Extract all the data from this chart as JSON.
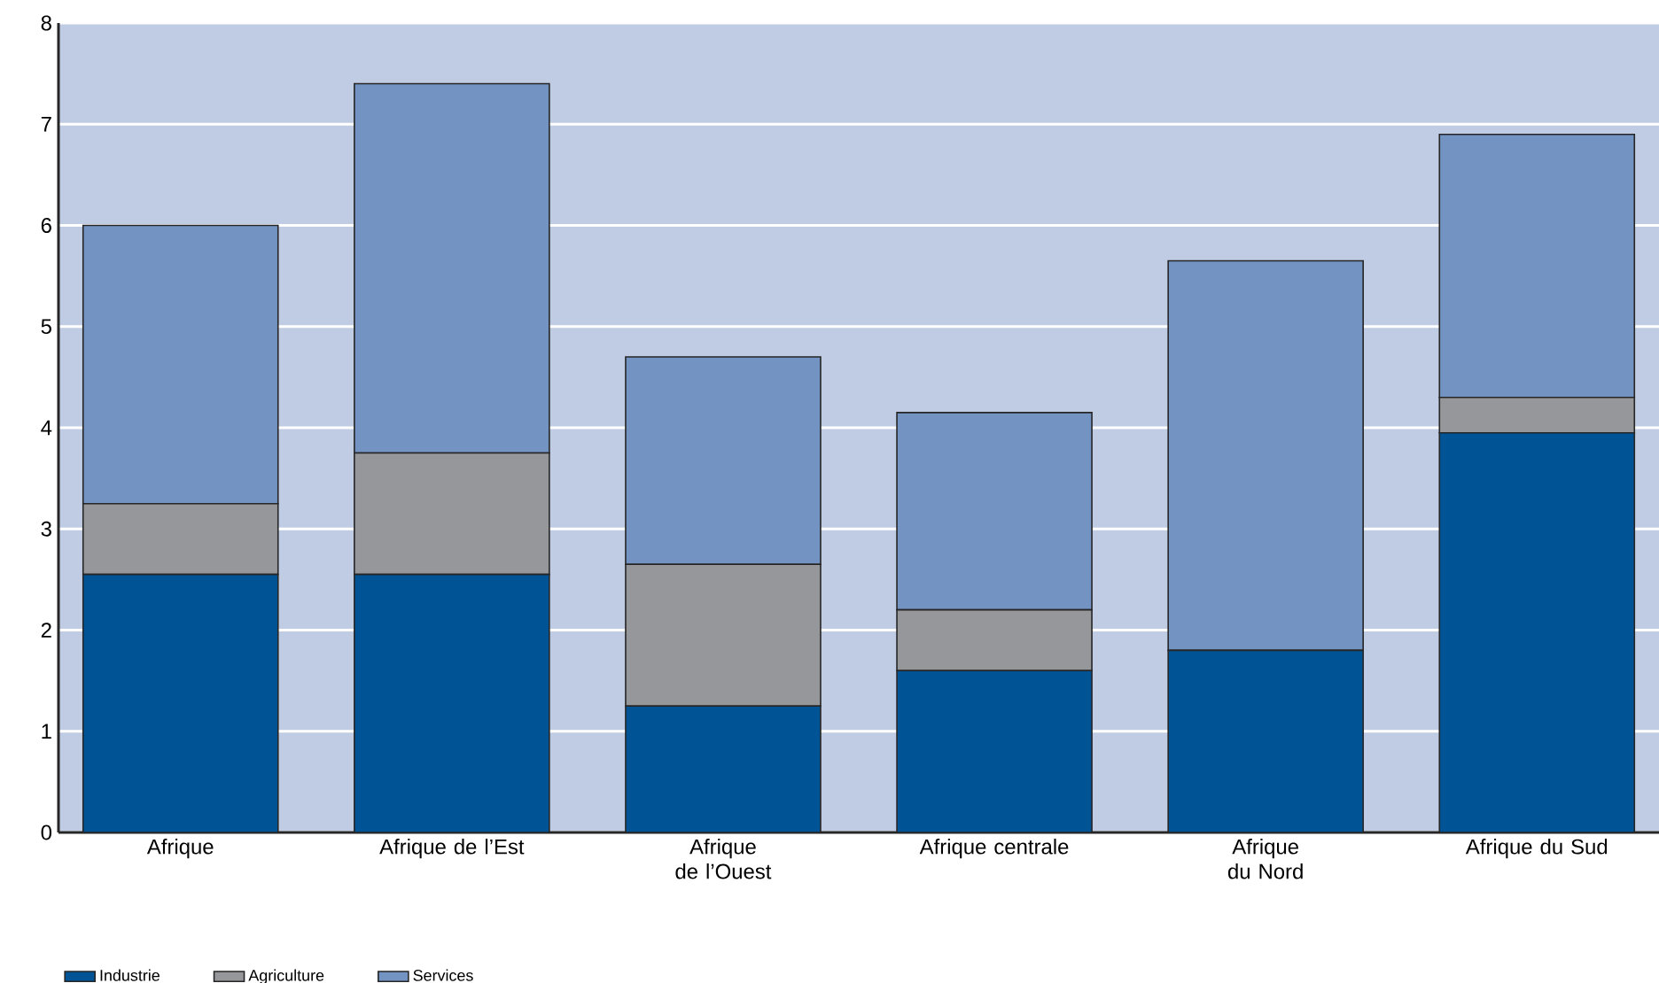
{
  "chart_data": {
    "type": "bar",
    "stacked": true,
    "categories": [
      "Afrique",
      "Afrique de l’Est",
      "Afrique de  l’Ouest",
      "Afrique centrale",
      "Afrique du Nord",
      "Afrique du Sud"
    ],
    "series": [
      {
        "name": "Industrie",
        "color": "#005496",
        "values": [
          2.55,
          2.55,
          1.25,
          1.6,
          1.8,
          3.95
        ]
      },
      {
        "name": "Agriculture",
        "color": "#96979b",
        "values": [
          0.7,
          1.2,
          1.4,
          0.6,
          0,
          0.35
        ]
      },
      {
        "name": "Services",
        "color": "#7393c2",
        "values": [
          2.75,
          3.65,
          2.05,
          1.95,
          3.85,
          2.6
        ]
      }
    ],
    "ylim": [
      0,
      8
    ],
    "yticks": [
      0,
      1,
      2,
      3,
      4,
      5,
      6,
      7,
      8
    ],
    "grid": "y",
    "legend": "bottom left"
  }
}
